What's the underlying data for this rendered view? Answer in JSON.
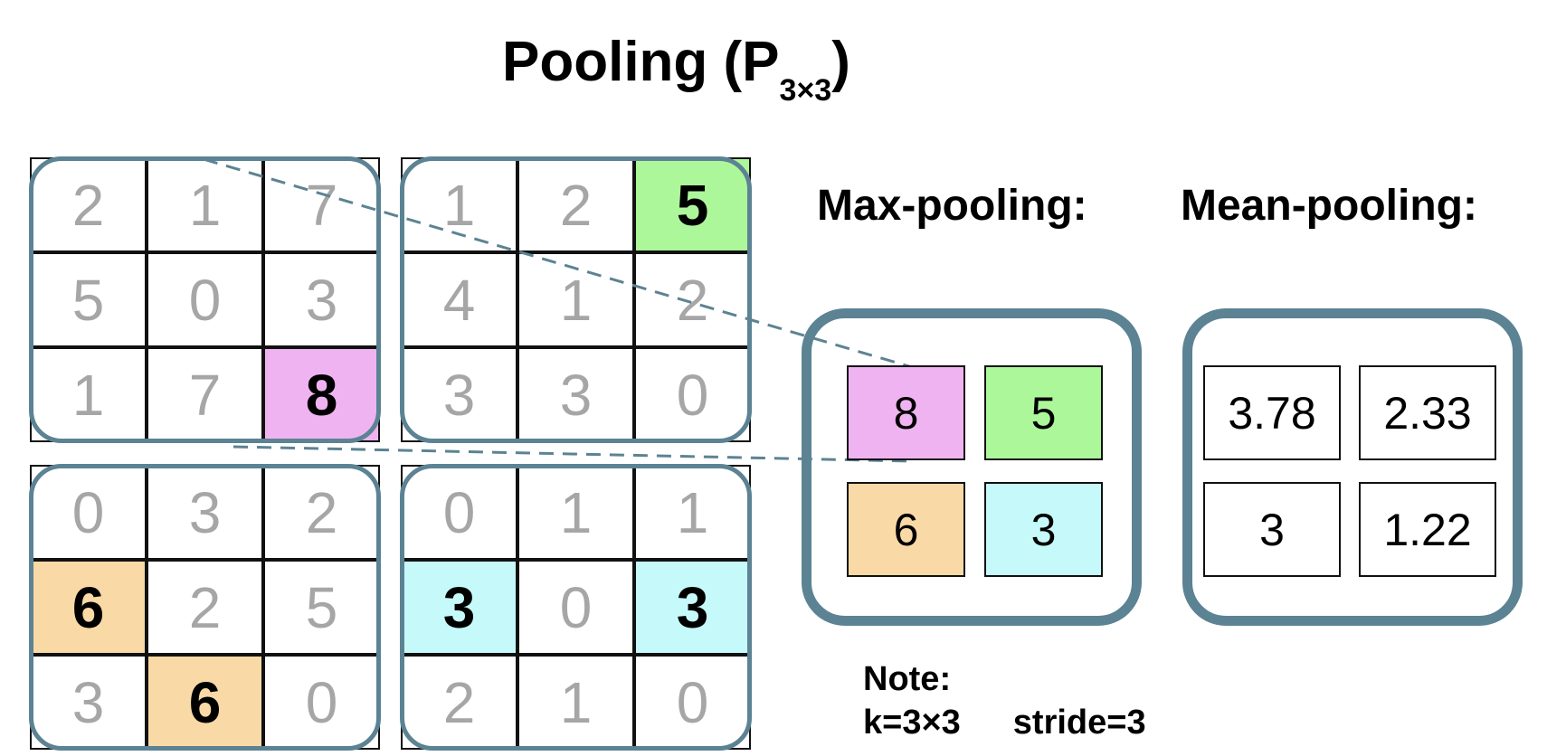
{
  "title": {
    "main": "Pooling (P",
    "subscript": "3×3",
    "close": ")"
  },
  "input_grid": [
    [
      2,
      1,
      7,
      1,
      2,
      5
    ],
    [
      5,
      0,
      3,
      4,
      1,
      2
    ],
    [
      1,
      7,
      8,
      3,
      3,
      0
    ],
    [
      0,
      3,
      2,
      0,
      1,
      1
    ],
    [
      6,
      2,
      5,
      3,
      0,
      3
    ],
    [
      3,
      6,
      0,
      2,
      1,
      0
    ]
  ],
  "highlights": [
    {
      "row": 2,
      "col": 2,
      "color": "#f0b3f2"
    },
    {
      "row": 0,
      "col": 5,
      "color": "#adf79b"
    },
    {
      "row": 4,
      "col": 0,
      "color": "#f9d9a6"
    },
    {
      "row": 5,
      "col": 1,
      "color": "#f9d9a6"
    },
    {
      "row": 4,
      "col": 3,
      "color": "#c6fafa"
    },
    {
      "row": 4,
      "col": 5,
      "color": "#c6fafa"
    }
  ],
  "max_pooling": {
    "label": "Max-pooling:",
    "values": [
      "8",
      "5",
      "6",
      "3"
    ],
    "colors": [
      "#f0b3f2",
      "#adf79b",
      "#f9d9a6",
      "#c6fafa"
    ]
  },
  "mean_pooling": {
    "label": "Mean-pooling:",
    "values": [
      "3.78",
      "2.33",
      "3",
      "1.22"
    ]
  },
  "note": {
    "label": "Note:",
    "kernel": "k=3×3",
    "stride": "stride=3"
  },
  "colors": {
    "frame": "#5c8393",
    "dim_text": "#a6a6a6"
  }
}
